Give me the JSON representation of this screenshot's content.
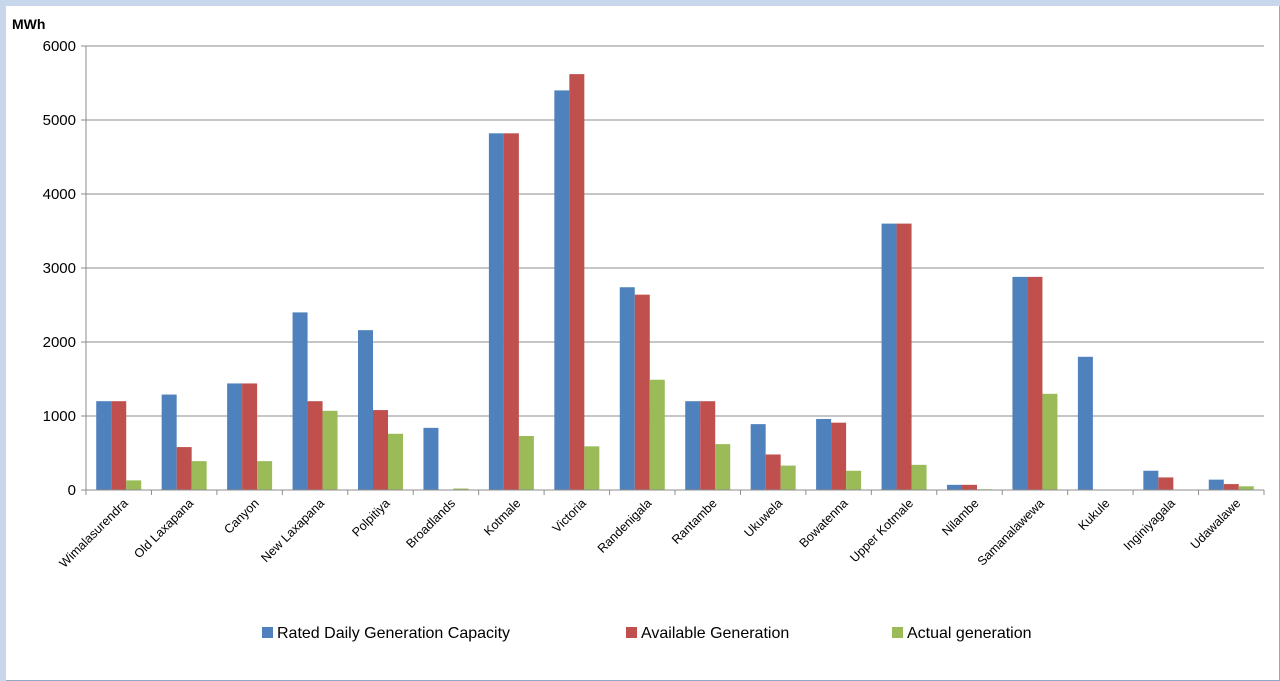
{
  "chart_data": {
    "type": "bar",
    "ylabel": "MWh",
    "ylim": [
      0,
      6000
    ],
    "yticks": [
      0,
      1000,
      2000,
      3000,
      4000,
      5000,
      6000
    ],
    "grid": true,
    "legend_position": "bottom",
    "categories": [
      "Wimalasurendra",
      "Old Laxapana",
      "Canyon",
      "New Laxapana",
      "Polpitiya",
      "Broadlands",
      "Kotmale",
      "Victoria",
      "Randenigala",
      "Rantambe",
      "Ukuwela",
      "Bowatenna",
      "Upper Kotmale",
      "Nilambe",
      "Samanalawewa",
      "Kukule",
      "Inginiyagala",
      "Udawalawe"
    ],
    "series": [
      {
        "name": "Rated Daily Generation Capacity",
        "color": "#4f81bd",
        "values": [
          1200,
          1290,
          1440,
          2400,
          2160,
          840,
          4820,
          5400,
          2740,
          1200,
          890,
          960,
          3600,
          70,
          2880,
          1800,
          260,
          140
        ]
      },
      {
        "name": "Available Generation",
        "color": "#c0504d",
        "values": [
          1200,
          580,
          1440,
          1200,
          1080,
          0,
          4820,
          5620,
          2640,
          1200,
          480,
          910,
          3600,
          70,
          2880,
          0,
          170,
          80
        ]
      },
      {
        "name": "Actual generation",
        "color": "#9bbb59",
        "values": [
          130,
          390,
          390,
          1070,
          760,
          20,
          730,
          590,
          1490,
          620,
          330,
          260,
          340,
          10,
          1300,
          0,
          0,
          50
        ]
      }
    ]
  }
}
